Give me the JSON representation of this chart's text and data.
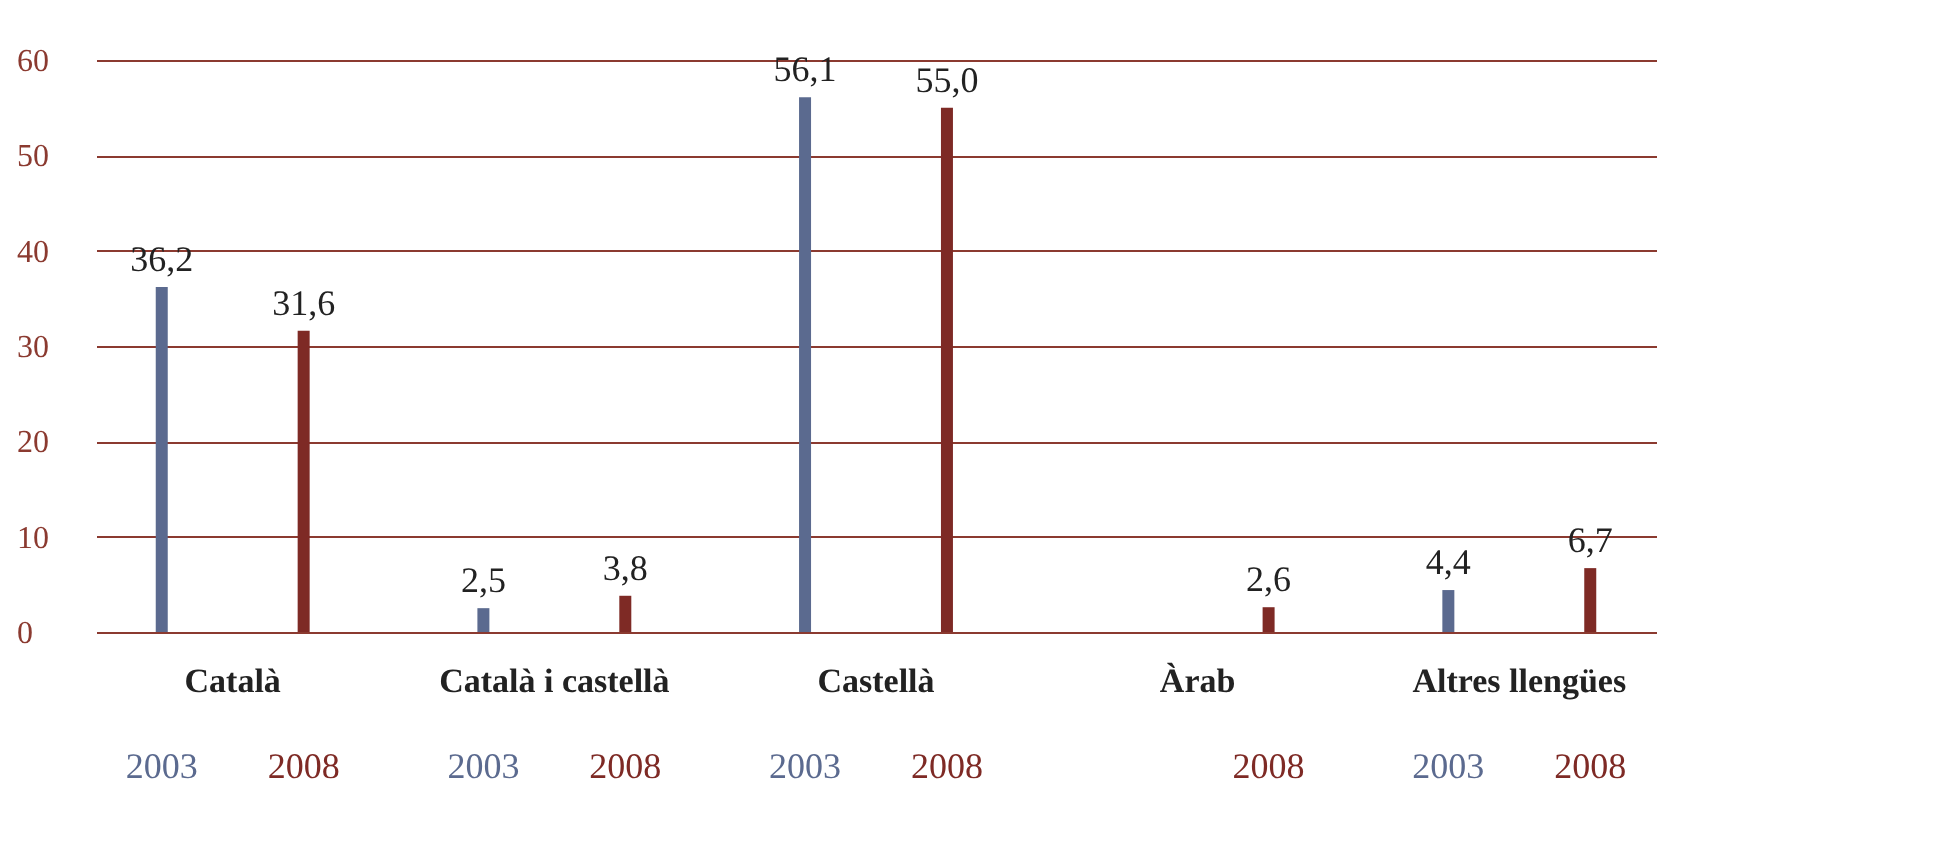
{
  "chart_data": {
    "type": "bar",
    "categories": [
      "Català",
      "Català i castellà",
      "Castellà",
      "Àrab",
      "Altres llengües"
    ],
    "series": [
      {
        "name": "2003",
        "color": "#5b6a8f",
        "values": [
          36.2,
          2.5,
          56.1,
          null,
          4.4
        ],
        "value_labels": [
          "36,2",
          "2,5",
          "56,1",
          null,
          "4,4"
        ]
      },
      {
        "name": "2008",
        "color": "#7e2a25",
        "values": [
          31.6,
          3.8,
          55.0,
          2.6,
          6.7
        ],
        "value_labels": [
          "31,6",
          "3,8",
          "55,0",
          "2,6",
          "6,7"
        ]
      }
    ],
    "ylim": [
      0,
      60
    ],
    "yticks": [
      0,
      10,
      20,
      30,
      40,
      50,
      60
    ],
    "grid": "y"
  }
}
